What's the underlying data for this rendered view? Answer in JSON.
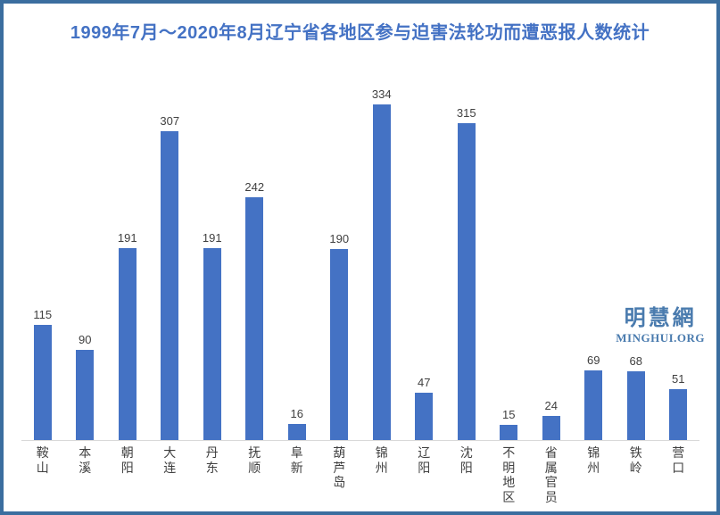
{
  "chart_data": {
    "type": "bar",
    "title": "1999年7月～2020年8月辽宁省各地区参与迫害法轮功而遭恶报人数统计",
    "categories": [
      "鞍山",
      "本溪",
      "朝阳",
      "大连",
      "丹东",
      "抚顺",
      "阜新",
      "葫芦岛",
      "锦州",
      "辽阳",
      "沈阳",
      "不明地区",
      "省属官员",
      "锦州",
      "铁岭",
      "营口"
    ],
    "values": [
      115,
      90,
      191,
      307,
      191,
      242,
      16,
      190,
      334,
      47,
      315,
      15,
      24,
      69,
      68,
      51
    ],
    "xlabel": "",
    "ylabel": "",
    "ylim": [
      0,
      360
    ],
    "grid": false,
    "legend": "none",
    "data_labels": true,
    "category_label_orientation": "vertical-stacked"
  },
  "colors": {
    "bar": "#4472c4",
    "title": "#4472c4",
    "label": "#404040",
    "axis_line": "#d9d9d9",
    "frame_border": "#3b6e9f",
    "watermark": "#4a7bae",
    "background": "#ffffff"
  },
  "watermark": {
    "chinese": "明慧網",
    "latin": "MINGHUI.ORG"
  }
}
